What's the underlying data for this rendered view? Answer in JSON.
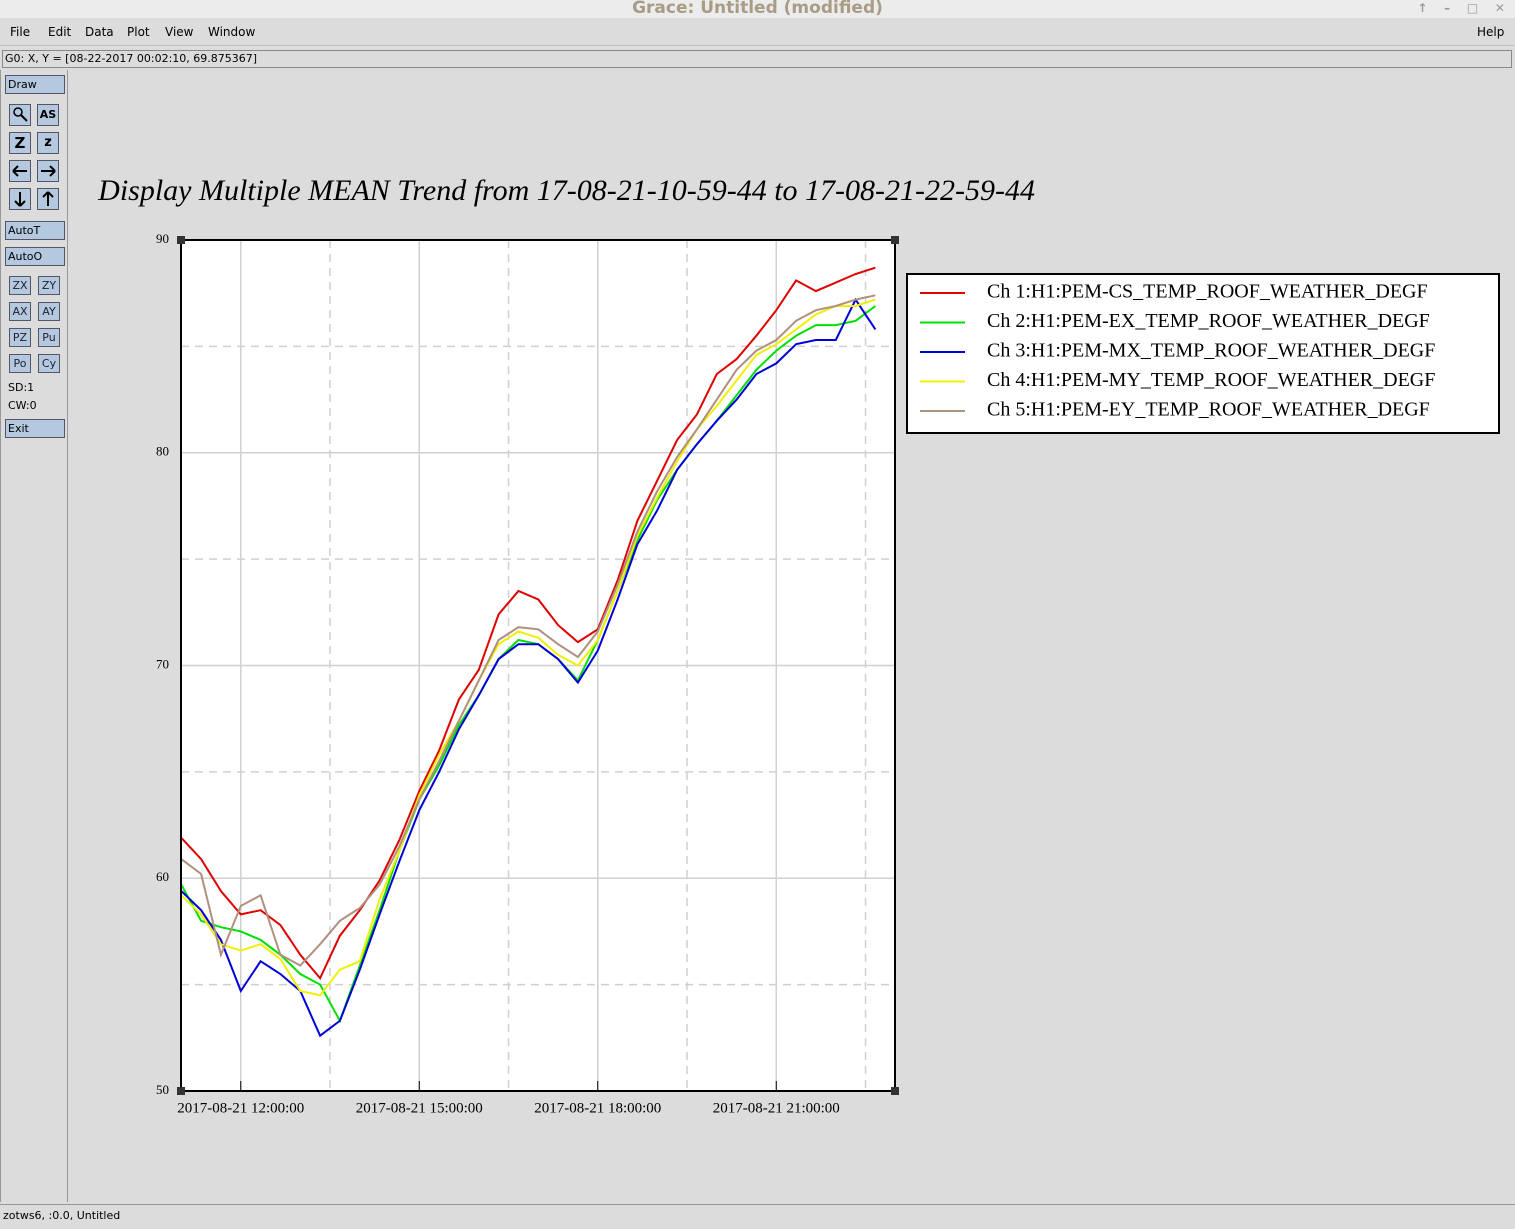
{
  "window": {
    "title": "Grace: Untitled (modified)"
  },
  "menu": [
    "File",
    "Edit",
    "Data",
    "Plot",
    "View",
    "Window"
  ],
  "help_menu": "Help",
  "locator": "G0: X, Y = [08-22-2017 00:02:10, 69.875367]",
  "toolbar": {
    "buttons": [
      "Draw",
      "AutoT",
      "AutoO",
      "ZX",
      "ZY",
      "AX",
      "AY",
      "PZ",
      "Pu",
      "Po",
      "Cy",
      "Exit"
    ],
    "icon_text": [
      "AS",
      "Z",
      "z"
    ],
    "labels": [
      "SD:1",
      "CW:0"
    ]
  },
  "status": "zotws6, :0.0, Untitled",
  "chart_data": {
    "type": "line",
    "title": "Display Multiple MEAN Trend from 17-08-21-10-59-44 to 17-08-21-22-59-44",
    "x": [
      "2017-08-21 11:00:00",
      "2017-08-21 11:20:00",
      "2017-08-21 11:40:00",
      "2017-08-21 12:00:00",
      "2017-08-21 12:20:00",
      "2017-08-21 12:40:00",
      "2017-08-21 13:00:00",
      "2017-08-21 13:20:00",
      "2017-08-21 13:40:00",
      "2017-08-21 14:00:00",
      "2017-08-21 14:20:00",
      "2017-08-21 14:40:00",
      "2017-08-21 15:00:00",
      "2017-08-21 15:20:00",
      "2017-08-21 15:40:00",
      "2017-08-21 16:00:00",
      "2017-08-21 16:20:00",
      "2017-08-21 16:40:00",
      "2017-08-21 17:00:00",
      "2017-08-21 17:20:00",
      "2017-08-21 17:40:00",
      "2017-08-21 18:00:00",
      "2017-08-21 18:20:00",
      "2017-08-21 18:40:00",
      "2017-08-21 19:00:00",
      "2017-08-21 19:20:00",
      "2017-08-21 19:40:00",
      "2017-08-21 20:00:00",
      "2017-08-21 20:20:00",
      "2017-08-21 20:40:00",
      "2017-08-21 21:00:00",
      "2017-08-21 21:20:00",
      "2017-08-21 21:40:00",
      "2017-08-21 22:00:00",
      "2017-08-21 22:20:00",
      "2017-08-21 22:40:00"
    ],
    "series": [
      {
        "name": "Ch 1:H1:PEM-CS_TEMP_ROOF_WEATHER_DEGF",
        "color": "#e00000",
        "values": [
          61.9,
          60.9,
          59.4,
          58.3,
          58.5,
          57.8,
          56.4,
          55.3,
          57.3,
          58.5,
          59.9,
          61.8,
          64.1,
          66.0,
          68.4,
          69.8,
          72.4,
          73.5,
          73.1,
          71.9,
          71.1,
          71.7,
          74.0,
          76.8,
          78.7,
          80.6,
          81.8,
          83.7,
          84.4,
          85.5,
          86.7,
          88.1,
          87.6,
          88.0,
          88.4,
          88.7
        ]
      },
      {
        "name": "Ch 2:H1:PEM-EX_TEMP_ROOF_WEATHER_DEGF",
        "color": "#00e000",
        "values": [
          59.7,
          58.0,
          57.7,
          57.5,
          57.1,
          56.4,
          55.5,
          55.0,
          53.3,
          55.9,
          58.5,
          61.3,
          63.7,
          65.3,
          67.2,
          68.6,
          70.3,
          71.2,
          71.0,
          70.3,
          69.3,
          71.2,
          73.5,
          75.9,
          77.8,
          79.2,
          80.4,
          81.5,
          82.7,
          83.9,
          84.8,
          85.5,
          86.0,
          86.0,
          86.2,
          86.9
        ]
      },
      {
        "name": "Ch 3:H1:PEM-MX_TEMP_ROOF_WEATHER_DEGF",
        "color": "#0000d8",
        "values": [
          59.4,
          58.5,
          57.1,
          54.7,
          56.1,
          55.5,
          54.7,
          52.6,
          53.3,
          55.7,
          58.3,
          60.8,
          63.2,
          65.0,
          67.0,
          68.6,
          70.3,
          71.0,
          71.0,
          70.3,
          69.2,
          70.7,
          73.1,
          75.7,
          77.3,
          79.2,
          80.4,
          81.5,
          82.5,
          83.7,
          84.2,
          85.1,
          85.3,
          85.3,
          87.2,
          85.8
        ]
      },
      {
        "name": "Ch 4:H1:PEM-MY_TEMP_ROOF_WEATHER_DEGF",
        "color": "#f0f000",
        "values": [
          59.2,
          58.3,
          56.9,
          56.6,
          56.9,
          56.2,
          54.7,
          54.5,
          55.7,
          56.1,
          59.0,
          61.3,
          63.9,
          65.8,
          67.4,
          69.3,
          71.0,
          71.6,
          71.3,
          70.5,
          70.0,
          71.2,
          73.5,
          76.1,
          77.9,
          79.6,
          81.1,
          82.2,
          83.4,
          84.6,
          85.1,
          85.8,
          86.5,
          86.9,
          86.9,
          87.2
        ]
      },
      {
        "name": "Ch 5:H1:PEM-EY_TEMP_ROOF_WEATHER_DEGF",
        "color": "#b09080",
        "values": [
          60.9,
          60.2,
          56.4,
          58.7,
          59.2,
          56.4,
          55.9,
          56.9,
          58.0,
          58.6,
          59.7,
          61.5,
          63.7,
          65.5,
          67.4,
          69.3,
          71.2,
          71.8,
          71.7,
          71.0,
          70.4,
          71.6,
          73.8,
          76.3,
          78.2,
          79.8,
          81.1,
          82.5,
          83.9,
          84.8,
          85.3,
          86.2,
          86.7,
          86.9,
          87.2,
          87.4
        ]
      }
    ],
    "xlim": [
      "2017-08-21 10:59:44",
      "2017-08-21 22:59:44"
    ],
    "xticks": [
      "2017-08-21 12:00:00",
      "2017-08-21 15:00:00",
      "2017-08-21 18:00:00",
      "2017-08-21 21:00:00"
    ],
    "x_minor_ticks": [
      "2017-08-21 13:30:00",
      "2017-08-21 16:30:00",
      "2017-08-21 19:30:00",
      "2017-08-21 22:30:00"
    ],
    "ylim": [
      50,
      90
    ],
    "yticks": [
      50,
      60,
      70,
      80,
      90
    ],
    "y_minor_ticks": [
      55,
      65,
      75,
      85
    ],
    "grid": true,
    "legend": "right"
  }
}
